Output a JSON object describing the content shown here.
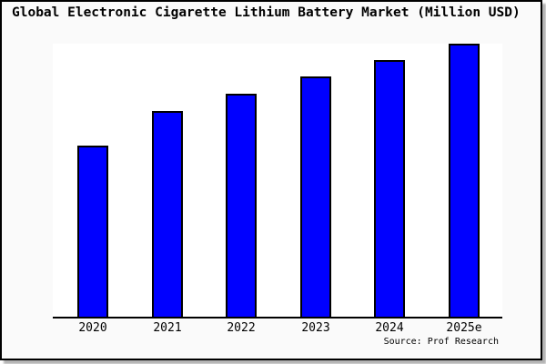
{
  "window": {
    "title_bar": "Global Electronic Cigarette Lithium Battery Market (Million USD)"
  },
  "source_note": "Source: Prof Research",
  "colors": {
    "bar_fill": "#0000ff",
    "bar_border": "#000000",
    "frame_background": "#fafafa",
    "plot_background": "#ffffff",
    "axis": "#000000",
    "text": "#000000",
    "frame_border": "#000000"
  },
  "chart_data": {
    "type": "bar",
    "title": "Global Electronic Cigarette Lithium Battery Market (Million USD)",
    "categories": [
      "2020",
      "2021",
      "2022",
      "2023",
      "2024",
      "2025e"
    ],
    "values": [
      62.7,
      75.3,
      81.7,
      88.0,
      94.0,
      100.0
    ],
    "value_note": "No y-axis scale shown in chart; values are bar heights as percent of the tallest (2025e) bar",
    "xlabel": "",
    "ylabel": "",
    "ylim": [
      0,
      100
    ],
    "gridlines": false,
    "y_axis_visible": false,
    "legend": "none",
    "annotation": "Source: Prof Research"
  }
}
